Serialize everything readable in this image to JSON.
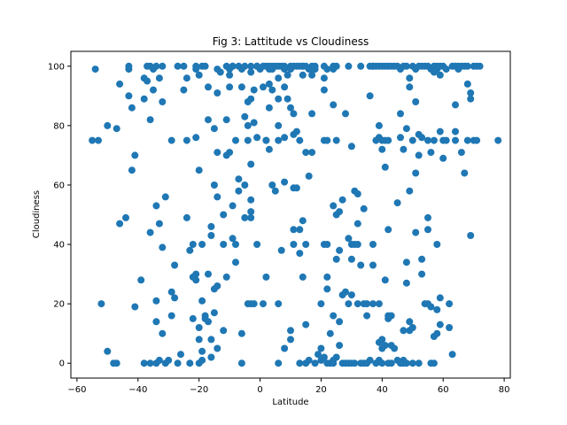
{
  "chart_data": {
    "type": "scatter",
    "title": "Fig 3: Lattitude vs Cloudiness",
    "xlabel": "Latitude",
    "ylabel": "Cloudiness",
    "xlim": [
      -62,
      82
    ],
    "ylim": [
      -5,
      105
    ],
    "xticks": [
      -60,
      -40,
      -20,
      0,
      20,
      40,
      60,
      80
    ],
    "yticks": [
      0,
      20,
      40,
      60,
      80,
      100
    ],
    "grid": false,
    "marker_color": "#1f77b4",
    "points": [
      [
        -55,
        75
      ],
      [
        -53,
        75
      ],
      [
        -54,
        99
      ],
      [
        -52,
        20
      ],
      [
        -50,
        80
      ],
      [
        -50,
        4
      ],
      [
        -48,
        0
      ],
      [
        -47,
        0
      ],
      [
        -47,
        79
      ],
      [
        -46,
        47
      ],
      [
        -46,
        94
      ],
      [
        -44,
        49
      ],
      [
        -43,
        100
      ],
      [
        -43,
        99
      ],
      [
        -43,
        90
      ],
      [
        -42,
        86
      ],
      [
        -42,
        65
      ],
      [
        -41,
        70
      ],
      [
        -41,
        19
      ],
      [
        -39,
        28
      ],
      [
        -38,
        0
      ],
      [
        -38,
        96
      ],
      [
        -38,
        89
      ],
      [
        -37,
        100
      ],
      [
        -37,
        95
      ],
      [
        -36,
        100
      ],
      [
        -36,
        82
      ],
      [
        -36,
        44
      ],
      [
        -36,
        0
      ],
      [
        -35,
        99
      ],
      [
        -35,
        92
      ],
      [
        -34,
        100
      ],
      [
        -34,
        53
      ],
      [
        -34,
        21
      ],
      [
        -34,
        14
      ],
      [
        -34,
        0
      ],
      [
        -33,
        1
      ],
      [
        -33,
        96
      ],
      [
        -33,
        47
      ],
      [
        -32,
        100
      ],
      [
        -32,
        88
      ],
      [
        -32,
        39
      ],
      [
        -32,
        10
      ],
      [
        -31,
        0
      ],
      [
        -31,
        56
      ],
      [
        -30,
        1
      ],
      [
        -29,
        24
      ],
      [
        -29,
        75
      ],
      [
        -29,
        16
      ],
      [
        -28,
        22
      ],
      [
        -28,
        33
      ],
      [
        -27,
        100
      ],
      [
        -27,
        0
      ],
      [
        -26,
        3
      ],
      [
        -25,
        100
      ],
      [
        -25,
        92
      ],
      [
        -24,
        96
      ],
      [
        -24,
        75
      ],
      [
        -24,
        49
      ],
      [
        -23,
        0
      ],
      [
        -23,
        38
      ],
      [
        -22,
        40
      ],
      [
        -22,
        15
      ],
      [
        -22,
        29
      ],
      [
        -21,
        100
      ],
      [
        -21,
        99
      ],
      [
        -21,
        76
      ],
      [
        -21,
        30
      ],
      [
        -21,
        28
      ],
      [
        -20,
        97
      ],
      [
        -20,
        65
      ],
      [
        -20,
        0
      ],
      [
        -20,
        12
      ],
      [
        -20,
        8
      ],
      [
        -19,
        100
      ],
      [
        -19,
        4
      ],
      [
        -19,
        1
      ],
      [
        -19,
        40
      ],
      [
        -19,
        21
      ],
      [
        -18,
        100
      ],
      [
        -18,
        15
      ],
      [
        -18,
        16
      ],
      [
        -17,
        30
      ],
      [
        -17,
        82
      ],
      [
        -17,
        93
      ],
      [
        -17,
        14
      ],
      [
        -16,
        2
      ],
      [
        -16,
        8
      ],
      [
        -16,
        43
      ],
      [
        -16,
        46
      ],
      [
        -15,
        60
      ],
      [
        -15,
        79
      ],
      [
        -15,
        25
      ],
      [
        -15,
        17
      ],
      [
        -14,
        5
      ],
      [
        -14,
        99
      ],
      [
        -14,
        91
      ],
      [
        -14,
        71
      ],
      [
        -14,
        56
      ],
      [
        -14,
        26
      ],
      [
        -13,
        98
      ],
      [
        -12,
        50
      ],
      [
        -12,
        40
      ],
      [
        -12,
        11
      ],
      [
        -11,
        100
      ],
      [
        -11,
        82
      ],
      [
        -11,
        70
      ],
      [
        -11,
        29
      ],
      [
        -10,
        99
      ],
      [
        -10,
        93
      ],
      [
        -10,
        97
      ],
      [
        -10,
        71
      ],
      [
        -9,
        100
      ],
      [
        -9,
        100
      ],
      [
        -9,
        53
      ],
      [
        -9,
        42
      ],
      [
        -8,
        40
      ],
      [
        -8,
        34
      ],
      [
        -8,
        75
      ],
      [
        -7,
        100
      ],
      [
        -7,
        62
      ],
      [
        -7,
        58
      ],
      [
        -6,
        99
      ],
      [
        -6,
        93
      ],
      [
        -6,
        10
      ],
      [
        -6,
        0
      ],
      [
        -5,
        100
      ],
      [
        -5,
        60
      ],
      [
        -5,
        49
      ],
      [
        -5,
        83
      ],
      [
        -4,
        88
      ],
      [
        -4,
        80
      ],
      [
        -4,
        20
      ],
      [
        -4,
        75
      ],
      [
        -3,
        100
      ],
      [
        -3,
        98
      ],
      [
        -3,
        89
      ],
      [
        -3,
        55
      ],
      [
        -3,
        67
      ],
      [
        -3,
        51
      ],
      [
        -3,
        49
      ],
      [
        -3,
        20
      ],
      [
        -2,
        92
      ],
      [
        -2,
        81
      ],
      [
        -2,
        20
      ],
      [
        -1,
        100
      ],
      [
        -1,
        76
      ],
      [
        -1,
        100
      ],
      [
        -1,
        40
      ],
      [
        0,
        99
      ],
      [
        1,
        100
      ],
      [
        1,
        93
      ],
      [
        1,
        20
      ],
      [
        2,
        100
      ],
      [
        2,
        75
      ],
      [
        2,
        75
      ],
      [
        2,
        29
      ],
      [
        3,
        99
      ],
      [
        3,
        100
      ],
      [
        3,
        94
      ],
      [
        3,
        86
      ],
      [
        3,
        72
      ],
      [
        4,
        100
      ],
      [
        4,
        92
      ],
      [
        4,
        60
      ],
      [
        4,
        99
      ],
      [
        5,
        100
      ],
      [
        5,
        58
      ],
      [
        6,
        100
      ],
      [
        6,
        96
      ],
      [
        6,
        89
      ],
      [
        6,
        80
      ],
      [
        6,
        75
      ],
      [
        6,
        0
      ],
      [
        6,
        20
      ],
      [
        7,
        100
      ],
      [
        7,
        38
      ],
      [
        8,
        100
      ],
      [
        8,
        99
      ],
      [
        8,
        93
      ],
      [
        8,
        76
      ],
      [
        8,
        61
      ],
      [
        8,
        5
      ],
      [
        9,
        97
      ],
      [
        9,
        89
      ],
      [
        10,
        100
      ],
      [
        10,
        99
      ],
      [
        10,
        86
      ],
      [
        10,
        11
      ],
      [
        10,
        8
      ],
      [
        11,
        100
      ],
      [
        11,
        84
      ],
      [
        11,
        40
      ],
      [
        11,
        45
      ],
      [
        11,
        59
      ],
      [
        11,
        77
      ],
      [
        12,
        100
      ],
      [
        12,
        59
      ],
      [
        12,
        78
      ],
      [
        13,
        100
      ],
      [
        13,
        75
      ],
      [
        13,
        45
      ],
      [
        13,
        37
      ],
      [
        13,
        0
      ],
      [
        14,
        100
      ],
      [
        14,
        100
      ],
      [
        14,
        97
      ],
      [
        14,
        48
      ],
      [
        14,
        29
      ],
      [
        15,
        100
      ],
      [
        15,
        0
      ],
      [
        15,
        13
      ],
      [
        15,
        71
      ],
      [
        15,
        40
      ],
      [
        16,
        99
      ],
      [
        16,
        1
      ],
      [
        16,
        63
      ],
      [
        17,
        100
      ],
      [
        17,
        97
      ],
      [
        17,
        99
      ],
      [
        17,
        84
      ],
      [
        17,
        71
      ],
      [
        18,
        100
      ],
      [
        18,
        99
      ],
      [
        18,
        0
      ],
      [
        19,
        3
      ],
      [
        20,
        5
      ],
      [
        20,
        1
      ],
      [
        20,
        20
      ],
      [
        21,
        100
      ],
      [
        21,
        96
      ],
      [
        21,
        92
      ],
      [
        21,
        75
      ],
      [
        21,
        40
      ],
      [
        21,
        2
      ],
      [
        22,
        99
      ],
      [
        22,
        40
      ],
      [
        22,
        25
      ],
      [
        22,
        29
      ],
      [
        22,
        0
      ],
      [
        22,
        75
      ],
      [
        23,
        10
      ],
      [
        23,
        0
      ],
      [
        24,
        100
      ],
      [
        24,
        99
      ],
      [
        24,
        87
      ],
      [
        24,
        53
      ],
      [
        24,
        16
      ],
      [
        24,
        1
      ],
      [
        24,
        0
      ],
      [
        25,
        100
      ],
      [
        25,
        75
      ],
      [
        25,
        35
      ],
      [
        25,
        50
      ],
      [
        25,
        2
      ],
      [
        26,
        51
      ],
      [
        26,
        38
      ],
      [
        26,
        14
      ],
      [
        26,
        6
      ],
      [
        27,
        55
      ],
      [
        27,
        23
      ],
      [
        27,
        0
      ],
      [
        28,
        24
      ],
      [
        28,
        84
      ],
      [
        28,
        0
      ],
      [
        29,
        100
      ],
      [
        29,
        42
      ],
      [
        29,
        0
      ],
      [
        29,
        20
      ],
      [
        30,
        40
      ],
      [
        30,
        73
      ],
      [
        30,
        23
      ],
      [
        30,
        0
      ],
      [
        30,
        35
      ],
      [
        31,
        58
      ],
      [
        31,
        0
      ],
      [
        31,
        40
      ],
      [
        32,
        57
      ],
      [
        32,
        47
      ],
      [
        32,
        40
      ],
      [
        32,
        20
      ],
      [
        33,
        100
      ],
      [
        33,
        0
      ],
      [
        33,
        33
      ],
      [
        34,
        52
      ],
      [
        34,
        20
      ],
      [
        34,
        0
      ],
      [
        35,
        0
      ],
      [
        35,
        16
      ],
      [
        35,
        20
      ],
      [
        36,
        100
      ],
      [
        36,
        90
      ],
      [
        36,
        1
      ],
      [
        37,
        100
      ],
      [
        37,
        100
      ],
      [
        37,
        40
      ],
      [
        37,
        33
      ],
      [
        37,
        20
      ],
      [
        38,
        100
      ],
      [
        38,
        75
      ],
      [
        38,
        0
      ],
      [
        39,
        80
      ],
      [
        39,
        76
      ],
      [
        39,
        100
      ],
      [
        39,
        20
      ],
      [
        39,
        7
      ],
      [
        39,
        1
      ],
      [
        40,
        100
      ],
      [
        40,
        75
      ],
      [
        40,
        72
      ],
      [
        40,
        0
      ],
      [
        40,
        5
      ],
      [
        40,
        8
      ],
      [
        41,
        100
      ],
      [
        41,
        66
      ],
      [
        41,
        6
      ],
      [
        41,
        28
      ],
      [
        41,
        75
      ],
      [
        42,
        100
      ],
      [
        42,
        75
      ],
      [
        42,
        15
      ],
      [
        42,
        45
      ],
      [
        42,
        16
      ],
      [
        42,
        0
      ],
      [
        43,
        100
      ],
      [
        43,
        0
      ],
      [
        43,
        6
      ],
      [
        43,
        16
      ],
      [
        44,
        100
      ],
      [
        44,
        5
      ],
      [
        45,
        100
      ],
      [
        45,
        54
      ],
      [
        45,
        1
      ],
      [
        46,
        99
      ],
      [
        46,
        0
      ],
      [
        46,
        84
      ],
      [
        46,
        76
      ],
      [
        47,
        100
      ],
      [
        47,
        72
      ],
      [
        47,
        1
      ],
      [
        47,
        0
      ],
      [
        47,
        11
      ],
      [
        48,
        100
      ],
      [
        48,
        79
      ],
      [
        48,
        27
      ],
      [
        48,
        34
      ],
      [
        48,
        0
      ],
      [
        49,
        96
      ],
      [
        49,
        93
      ],
      [
        49,
        58
      ],
      [
        49,
        14
      ],
      [
        49,
        11
      ],
      [
        50,
        100
      ],
      [
        50,
        75
      ],
      [
        50,
        12
      ],
      [
        50,
        0
      ],
      [
        51,
        99
      ],
      [
        51,
        88
      ],
      [
        51,
        64
      ],
      [
        51,
        44
      ],
      [
        52,
        100
      ],
      [
        52,
        77
      ],
      [
        52,
        70
      ],
      [
        52,
        0
      ],
      [
        53,
        100
      ],
      [
        53,
        76
      ],
      [
        53,
        35
      ],
      [
        53,
        30
      ],
      [
        54,
        100
      ],
      [
        54,
        20
      ],
      [
        55,
        100
      ],
      [
        55,
        75
      ],
      [
        55,
        49
      ],
      [
        55,
        45
      ],
      [
        55,
        20
      ],
      [
        56,
        99
      ],
      [
        56,
        71
      ],
      [
        56,
        19
      ],
      [
        56,
        0
      ],
      [
        57,
        100
      ],
      [
        57,
        98
      ],
      [
        57,
        75
      ],
      [
        57,
        9
      ],
      [
        57,
        0
      ],
      [
        58,
        100
      ],
      [
        58,
        99
      ],
      [
        58,
        40
      ],
      [
        58,
        10
      ],
      [
        58,
        18
      ],
      [
        59,
        100
      ],
      [
        59,
        97
      ],
      [
        59,
        78
      ],
      [
        59,
        22
      ],
      [
        59,
        13
      ],
      [
        60,
        100
      ],
      [
        60,
        75
      ],
      [
        60,
        69
      ],
      [
        61,
        99
      ],
      [
        61,
        75
      ],
      [
        62,
        12
      ],
      [
        62,
        20
      ],
      [
        63,
        100
      ],
      [
        63,
        3
      ],
      [
        64,
        100
      ],
      [
        64,
        87
      ],
      [
        64,
        78
      ],
      [
        64,
        75
      ],
      [
        65,
        100
      ],
      [
        65,
        99
      ],
      [
        66,
        100
      ],
      [
        66,
        71
      ],
      [
        67,
        100
      ],
      [
        67,
        64
      ],
      [
        68,
        100
      ],
      [
        68,
        94
      ],
      [
        68,
        75
      ],
      [
        69,
        89
      ],
      [
        69,
        91
      ],
      [
        69,
        43
      ],
      [
        70,
        100
      ],
      [
        70,
        75
      ],
      [
        71,
        75
      ],
      [
        71,
        100
      ],
      [
        72,
        100
      ],
      [
        78,
        75
      ]
    ]
  }
}
